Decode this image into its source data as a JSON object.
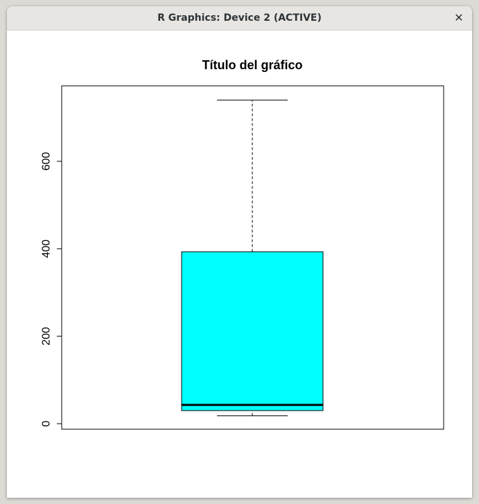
{
  "window": {
    "title": "R Graphics: Device 2 (ACTIVE)",
    "close_glyph": "✕"
  },
  "chart_data": {
    "type": "boxplot",
    "title": "Título del gráfico",
    "xlabel": "",
    "ylabel": "",
    "ylim": [
      0,
      745
    ],
    "yticks": [
      0,
      200,
      400,
      600
    ],
    "ytick_labels": [
      "0",
      "200",
      "400",
      "600"
    ],
    "box": {
      "min": 18,
      "q1": 30,
      "median": 43,
      "q3": 393,
      "max": 740
    },
    "fill_color": "#00ffff",
    "grid": false
  }
}
